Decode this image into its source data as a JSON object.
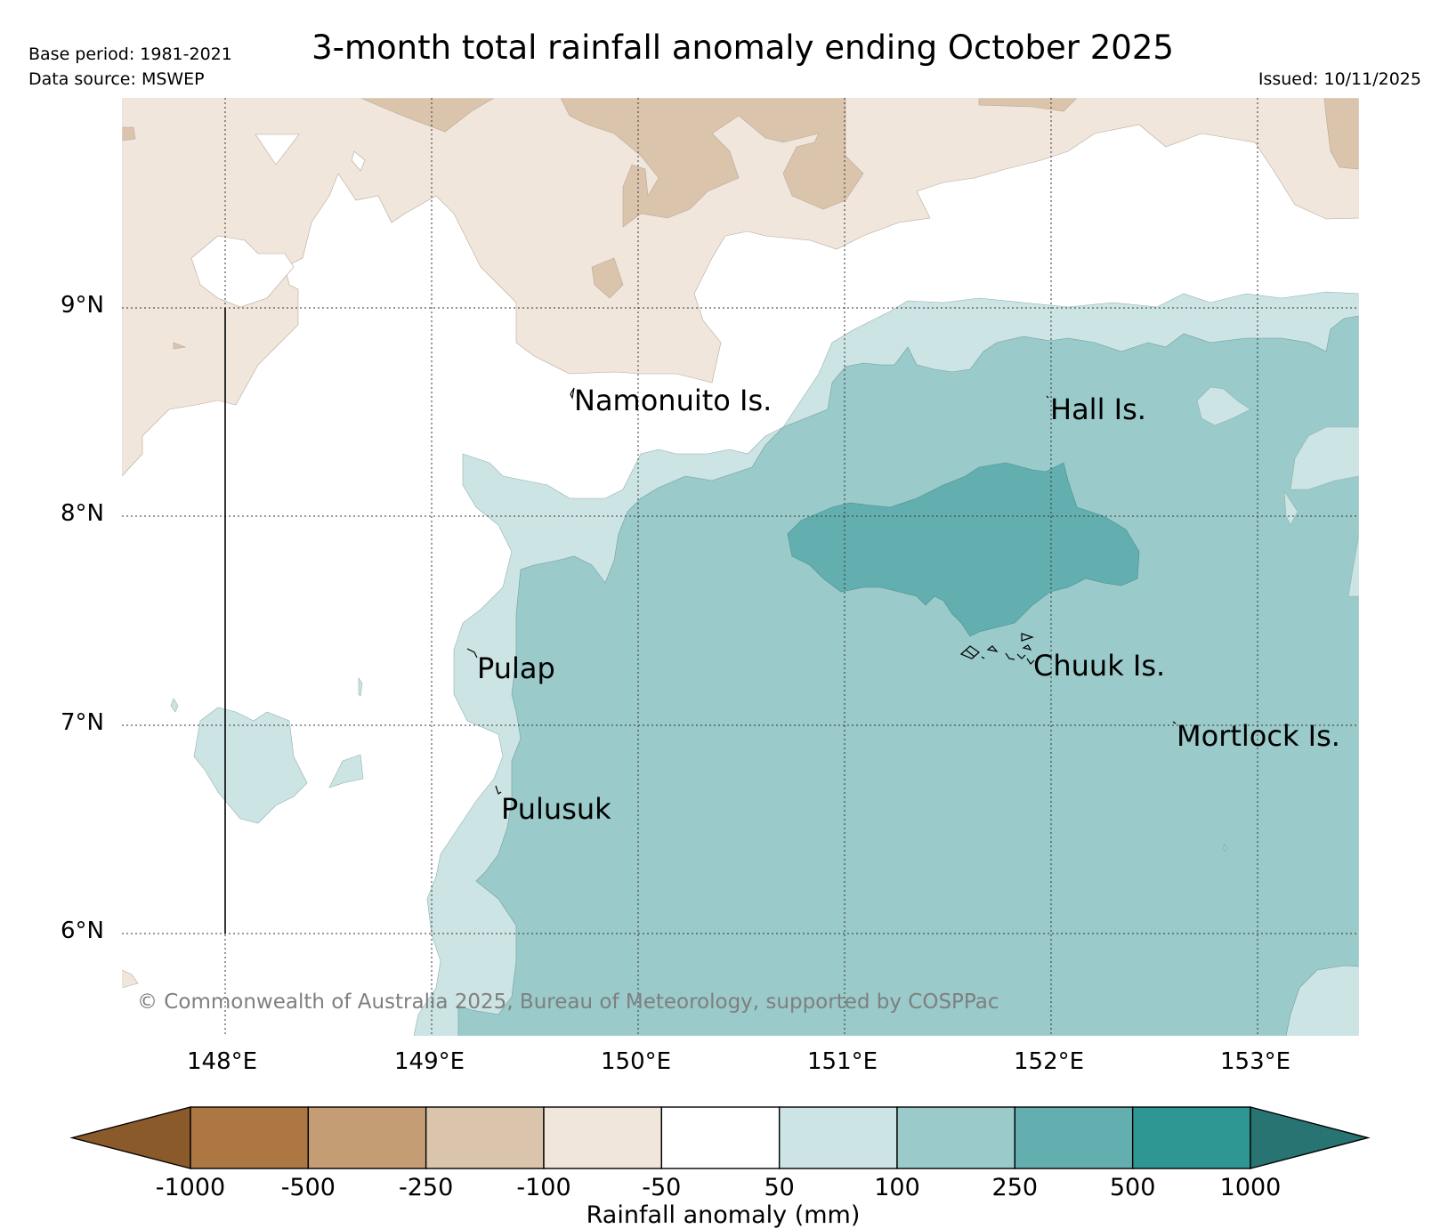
{
  "header": {
    "title": "3-month total rainfall anomaly ending October 2025",
    "base_period": "Base period: 1981-2021",
    "data_source": "Data source: MSWEP",
    "issued": "Issued: 10/11/2025"
  },
  "map": {
    "latitude_labels": [
      "9°N",
      "8°N",
      "7°N",
      "6°N"
    ],
    "longitude_labels": [
      "148°E",
      "149°E",
      "150°E",
      "151°E",
      "152°E",
      "153°E"
    ],
    "islands": [
      "Namonuito Is.",
      "Hall Is.",
      "Pulap",
      "Chuuk Is.",
      "Mortlock Is.",
      "Pulusuk"
    ],
    "copyright": "© Commonwealth of Australia 2025, Bureau of Meteorology, supported by COSPPac"
  },
  "colorbar": {
    "ticks": [
      "-1000",
      "-500",
      "-250",
      "-100",
      "-50",
      "50",
      "100",
      "250",
      "500",
      "1000"
    ],
    "colors": [
      "#8b5a2b",
      "#ad7743",
      "#c49d75",
      "#dbc4ac",
      "#f0e6dc",
      "#ffffff",
      "#cde4e4",
      "#9acaca",
      "#63afb0",
      "#2e9693",
      "#277472"
    ],
    "axis_label": "Rainfall anomaly (mm)"
  }
}
